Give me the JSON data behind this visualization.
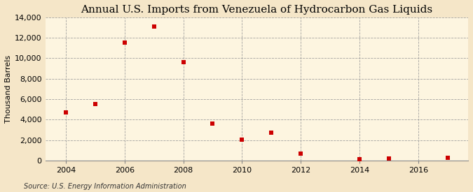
{
  "title": "Annual U.S. Imports from Venezuela of Hydrocarbon Gas Liquids",
  "ylabel": "Thousand Barrels",
  "source": "Source: U.S. Energy Information Administration",
  "years": [
    2004,
    2005,
    2006,
    2007,
    2008,
    2009,
    2010,
    2011,
    2012,
    2014,
    2015,
    2017
  ],
  "values": [
    4700,
    5500,
    11500,
    13100,
    9600,
    3600,
    2050,
    2700,
    650,
    150,
    200,
    250
  ],
  "xlim": [
    2003.3,
    2017.7
  ],
  "ylim": [
    0,
    14000
  ],
  "yticks": [
    0,
    2000,
    4000,
    6000,
    8000,
    10000,
    12000,
    14000
  ],
  "xticks": [
    2004,
    2006,
    2008,
    2010,
    2012,
    2014,
    2016
  ],
  "marker_color": "#cc0000",
  "marker_size": 5,
  "background_color": "#f5e6c8",
  "plot_bg_color": "#fdf5e0",
  "grid_color": "#999999",
  "title_fontsize": 11,
  "label_fontsize": 8,
  "tick_fontsize": 8,
  "source_fontsize": 7
}
